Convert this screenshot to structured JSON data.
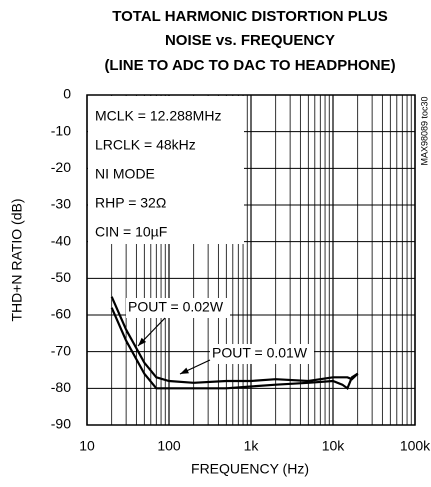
{
  "chart_data": {
    "type": "line",
    "title": [
      "TOTAL HARMONIC DISTORTION PLUS",
      "NOISE vs. FREQUENCY",
      "(LINE TO ADC TO DAC TO HEADPHONE)"
    ],
    "xlabel": "FREQUENCY (Hz)",
    "ylabel": "THD+N RATIO (dB)",
    "x_scale": "log",
    "grid": true,
    "xlim": [
      10,
      100000
    ],
    "ylim": [
      -90,
      0
    ],
    "xticks": [
      10,
      100,
      {
        "value": 1000,
        "label": "1k"
      },
      {
        "value": 10000,
        "label": "10k"
      },
      {
        "value": 100000,
        "label": "100k"
      }
    ],
    "yticks": [
      0,
      -10,
      -20,
      -30,
      -40,
      -50,
      -60,
      -70,
      -80,
      -90
    ],
    "annotations": [
      "MCLK = 12.288MHz",
      "LRCLK = 48kHz",
      "NI MODE",
      "RHP = 32Ω",
      "CIN = 10µF"
    ],
    "figure_id": "MAX98089 toc30",
    "x": [
      20,
      30,
      50,
      70,
      100,
      200,
      500,
      1000,
      2000,
      5000,
      10000,
      13000,
      15000,
      17000,
      20000
    ],
    "series": [
      {
        "name": "POUT = 0.02W",
        "color": "#000000",
        "values": [
          -55,
          -64,
          -73,
          -77,
          -78,
          -78.5,
          -78,
          -78,
          -77.5,
          -78,
          -77,
          -77,
          -77,
          -77.5,
          -76
        ]
      },
      {
        "name": "POUT = 0.01W",
        "color": "#000000",
        "values": [
          -58,
          -67,
          -76,
          -80,
          -80,
          -80,
          -80,
          -79.5,
          -79,
          -78.5,
          -78,
          -79,
          -80,
          -77,
          -76
        ]
      }
    ]
  }
}
